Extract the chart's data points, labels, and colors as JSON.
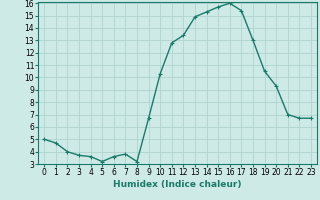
{
  "x": [
    0,
    1,
    2,
    3,
    4,
    5,
    6,
    7,
    8,
    9,
    10,
    11,
    12,
    13,
    14,
    15,
    16,
    17,
    18,
    19,
    20,
    21,
    22,
    23
  ],
  "y": [
    5.0,
    4.7,
    4.0,
    3.7,
    3.6,
    3.2,
    3.6,
    3.8,
    3.2,
    6.7,
    10.3,
    12.8,
    13.4,
    14.9,
    15.3,
    15.7,
    16.0,
    15.4,
    13.0,
    10.5,
    9.3,
    7.0,
    6.7,
    6.7
  ],
  "line_color": "#1a7a6a",
  "marker": "+",
  "marker_size": 3,
  "background_color": "#ceeae6",
  "grid_color": "#b0d4d0",
  "xlabel": "Humidex (Indice chaleur)",
  "xlim": [
    -0.5,
    23.5
  ],
  "ylim": [
    3,
    16
  ],
  "yticks": [
    3,
    4,
    5,
    6,
    7,
    8,
    9,
    10,
    11,
    12,
    13,
    14,
    15,
    16
  ],
  "xticks": [
    0,
    1,
    2,
    3,
    4,
    5,
    6,
    7,
    8,
    9,
    10,
    11,
    12,
    13,
    14,
    15,
    16,
    17,
    18,
    19,
    20,
    21,
    22,
    23
  ],
  "tick_fontsize": 5.5,
  "xlabel_fontsize": 6.5,
  "line_width": 1.0,
  "marker_edge_width": 0.8
}
